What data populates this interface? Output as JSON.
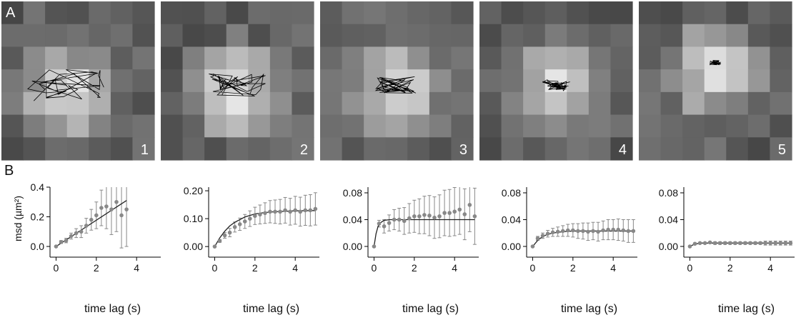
{
  "panel_labels": [
    "A",
    "B"
  ],
  "images": [
    {
      "label": "1"
    },
    {
      "label": "2"
    },
    {
      "label": "3"
    },
    {
      "label": "4"
    },
    {
      "label": "5"
    }
  ],
  "chart_data": [
    {
      "type": "errorbar",
      "y_label": "msd (µm²)",
      "x_label": "time lag (s)",
      "xlim": [
        -0.3,
        5.2
      ],
      "xticks": [
        0,
        2,
        4
      ],
      "ylim": [
        -0.072,
        0.4
      ],
      "yticks": [
        {
          "value": 0,
          "label": "0.0"
        },
        0.2,
        0.4
      ],
      "color": "#888888",
      "fit_color": "#222222",
      "x": [
        0,
        0.25,
        0.5,
        0.75,
        1,
        1.25,
        1.5,
        1.75,
        2,
        2.25,
        2.5,
        2.75,
        3,
        3.25,
        3.5
      ],
      "values": [
        0,
        0.03,
        0.04,
        0.07,
        0.09,
        0.1,
        0.14,
        0.18,
        0.21,
        0.26,
        0.27,
        0.25,
        0.3,
        0.21,
        0.25
      ],
      "errors": [
        0,
        0.01,
        0.015,
        0.02,
        0.03,
        0.04,
        0.05,
        0.07,
        0.09,
        0.12,
        0.15,
        0.17,
        0.2,
        0.22,
        0.25
      ],
      "fit_x": [
        0,
        3.5
      ],
      "fit_values": [
        0,
        0.31
      ]
    },
    {
      "type": "errorbar",
      "x_label": "time lag (s)",
      "xlim": [
        -0.3,
        5.2
      ],
      "xticks": [
        0,
        2,
        4
      ],
      "ylim": [
        -0.038,
        0.213
      ],
      "yticks": [
        {
          "value": 0,
          "label": "0.00"
        },
        {
          "value": 0.1,
          "label": "0.10"
        },
        {
          "value": 0.2,
          "label": "0.20"
        }
      ],
      "color": "#888888",
      "fit_color": "#222222",
      "x": [
        0,
        0.25,
        0.5,
        0.75,
        1,
        1.25,
        1.5,
        1.75,
        2,
        2.25,
        2.5,
        2.75,
        3,
        3.25,
        3.5,
        3.75,
        4,
        4.25,
        4.5,
        4.75,
        5
      ],
      "values": [
        0,
        0.02,
        0.04,
        0.05,
        0.07,
        0.08,
        0.09,
        0.1,
        0.11,
        0.115,
        0.12,
        0.125,
        0.125,
        0.125,
        0.13,
        0.125,
        0.13,
        0.125,
        0.13,
        0.13,
        0.135
      ],
      "errors": [
        0,
        0.005,
        0.01,
        0.015,
        0.018,
        0.022,
        0.025,
        0.028,
        0.031,
        0.034,
        0.037,
        0.04,
        0.042,
        0.044,
        0.046,
        0.048,
        0.05,
        0.052,
        0.054,
        0.056,
        0.058
      ],
      "fit_x": [
        0,
        0.25,
        0.5,
        0.75,
        1,
        1.5,
        2,
        2.5,
        3,
        4,
        5
      ],
      "fit_values": [
        0,
        0.031,
        0.055,
        0.074,
        0.087,
        0.106,
        0.117,
        0.122,
        0.125,
        0.128,
        0.129
      ]
    },
    {
      "type": "errorbar",
      "x_label": "time lag (s)",
      "xlim": [
        -0.3,
        5.2
      ],
      "xticks": [
        0,
        2,
        4
      ],
      "ylim": [
        -0.016,
        0.0885
      ],
      "yticks": [
        {
          "value": 0,
          "label": "0.00"
        },
        0.04,
        0.08
      ],
      "color": "#888888",
      "fit_color": "#222222",
      "x": [
        0,
        0.25,
        0.5,
        0.75,
        1,
        1.25,
        1.5,
        1.75,
        2,
        2.25,
        2.5,
        2.75,
        3,
        3.25,
        3.5,
        3.75,
        4,
        4.25,
        4.5,
        4.75,
        5
      ],
      "values": [
        0,
        0.034,
        0.03,
        0.035,
        0.04,
        0.04,
        0.038,
        0.042,
        0.045,
        0.045,
        0.047,
        0.046,
        0.043,
        0.045,
        0.05,
        0.05,
        0.052,
        0.055,
        0.048,
        0.062,
        0.045
      ],
      "errors": [
        0,
        0.005,
        0.01,
        0.012,
        0.015,
        0.017,
        0.02,
        0.022,
        0.024,
        0.026,
        0.028,
        0.03,
        0.031,
        0.032,
        0.034,
        0.035,
        0.036,
        0.037,
        0.038,
        0.04,
        0.042
      ],
      "fit_x": [
        0,
        0.1,
        0.2,
        0.3,
        0.5,
        0.8,
        1,
        5
      ],
      "fit_values": [
        0,
        0.019,
        0.03,
        0.035,
        0.039,
        0.04,
        0.04,
        0.04
      ]
    },
    {
      "type": "errorbar",
      "x_label": "time lag (s)",
      "xlim": [
        -0.3,
        5.2
      ],
      "xticks": [
        0,
        2,
        4
      ],
      "ylim": [
        -0.016,
        0.0885
      ],
      "yticks": [
        {
          "value": 0,
          "label": "0.00"
        },
        0.04,
        0.08
      ],
      "color": "#888888",
      "fit_color": "#222222",
      "x": [
        0,
        0.25,
        0.5,
        0.75,
        1,
        1.25,
        1.5,
        1.75,
        2,
        2.25,
        2.5,
        2.75,
        3,
        3.25,
        3.5,
        3.75,
        4,
        4.25,
        4.5,
        4.75,
        5
      ],
      "values": [
        0,
        0.012,
        0.016,
        0.019,
        0.021,
        0.022,
        0.023,
        0.024,
        0.024,
        0.023,
        0.023,
        0.022,
        0.023,
        0.022,
        0.024,
        0.025,
        0.025,
        0.025,
        0.024,
        0.023,
        0.023
      ],
      "errors": [
        0,
        0.003,
        0.004,
        0.005,
        0.006,
        0.007,
        0.008,
        0.009,
        0.01,
        0.011,
        0.012,
        0.013,
        0.013,
        0.014,
        0.014,
        0.015,
        0.015,
        0.016,
        0.016,
        0.017,
        0.017
      ],
      "fit_x": [
        0,
        0.25,
        0.5,
        0.75,
        1,
        1.5,
        2,
        3,
        5
      ],
      "fit_values": [
        0,
        0.009,
        0.015,
        0.018,
        0.02,
        0.022,
        0.023,
        0.023,
        0.023
      ]
    },
    {
      "type": "errorbar",
      "x_label": "time lag (s)",
      "xlim": [
        -0.3,
        5.2
      ],
      "xticks": [
        0,
        2,
        4
      ],
      "ylim": [
        -0.016,
        0.0885
      ],
      "yticks": [
        {
          "value": 0,
          "label": "0.00"
        },
        0.04,
        0.08
      ],
      "color": "#888888",
      "fit_color": "#222222",
      "x": [
        0,
        0.25,
        0.5,
        0.75,
        1,
        1.25,
        1.5,
        1.75,
        2,
        2.25,
        2.5,
        2.75,
        3,
        3.25,
        3.5,
        3.75,
        4,
        4.25,
        4.5,
        4.75,
        5
      ],
      "values": [
        0,
        0.004,
        0.005,
        0.005,
        0.006,
        0.005,
        0.005,
        0.005,
        0.005,
        0.005,
        0.005,
        0.005,
        0.005,
        0.005,
        0.005,
        0.005,
        0.005,
        0.005,
        0.005,
        0.005,
        0.005
      ],
      "errors": [
        0,
        0.001,
        0.001,
        0.001,
        0.001,
        0.002,
        0.002,
        0.002,
        0.002,
        0.002,
        0.002,
        0.002,
        0.002,
        0.002,
        0.002,
        0.003,
        0.003,
        0.003,
        0.003,
        0.003,
        0.003
      ],
      "fit_x": [
        0,
        0.2,
        0.5,
        1,
        5
      ],
      "fit_values": [
        0,
        0.003,
        0.005,
        0.005,
        0.005
      ]
    }
  ]
}
